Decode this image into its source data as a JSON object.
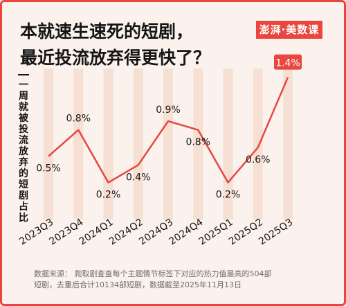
{
  "header": {
    "title_line1": "本就速生速死的短剧，",
    "title_line2": "最近投流放弃得更快了？",
    "brand": "澎湃·美数课"
  },
  "colors": {
    "accent": "#e8463f",
    "background": "#fbf2ed",
    "grid_band": "#f6dfd3",
    "text": "#161616",
    "muted": "#6d6d6d"
  },
  "chart_data": {
    "type": "line",
    "title": "",
    "ylabel": "一周就被投流放弃的短剧占比",
    "xlabel": "",
    "categories": [
      "2023Q3",
      "2023Q4",
      "2024Q1",
      "2024Q2",
      "2024Q3",
      "2024Q4",
      "2025Q1",
      "2025Q2",
      "2025Q3"
    ],
    "values": [
      0.5,
      0.8,
      0.2,
      0.4,
      0.9,
      0.8,
      0.2,
      0.6,
      1.4
    ],
    "value_labels": [
      "0.5%",
      "0.8%",
      "0.2%",
      "0.4%",
      "0.9%",
      "0.8%",
      "0.2%",
      "0.6%",
      "1.4%"
    ],
    "highlight_last": true,
    "ylim": [
      0,
      1.5
    ],
    "grid": false,
    "unit": "%"
  },
  "footer": {
    "source_line1": "数据来源：  爬取剧查查每个主题情节标签下对应的热力值最高的504部",
    "source_line2": "短剧，去重后合计10134部短剧，数据截至2025年11月13日"
  }
}
